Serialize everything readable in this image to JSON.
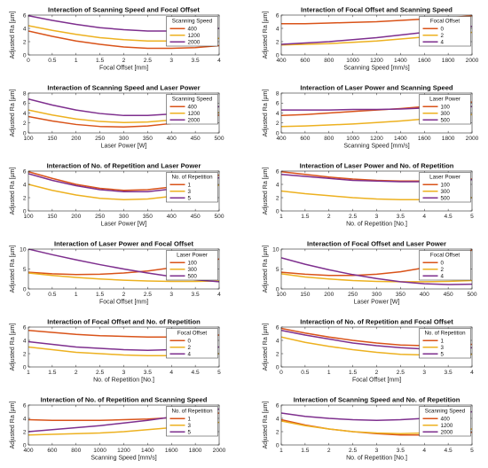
{
  "colors": {
    "series_1": "#D95319",
    "series_2": "#EDB120",
    "series_3": "#7E2F8E"
  },
  "chart_data": [
    {
      "type": "line",
      "title": "Interaction of Scanning Speed and Focal Offset",
      "xlabel": "Focal Offset [mm]",
      "ylabel": "Adjusted Ra [µm]",
      "xlim": [
        0,
        4
      ],
      "ylim": [
        0,
        6
      ],
      "xticks": [
        0,
        0.5,
        1,
        1.5,
        2,
        2.5,
        3,
        3.5,
        4
      ],
      "yticks": [
        0,
        2,
        4,
        6
      ],
      "x": [
        0,
        0.5,
        1,
        1.5,
        2,
        2.5,
        3,
        3.5,
        4
      ],
      "legend_title": "Scanning Speed",
      "legend_loc": "top-right",
      "series": [
        {
          "name": "400",
          "values": [
            3.6,
            2.8,
            2.1,
            1.6,
            1.2,
            1.0,
            1.0,
            1.1,
            1.4
          ]
        },
        {
          "name": "1200",
          "values": [
            4.4,
            3.7,
            3.1,
            2.6,
            2.3,
            2.1,
            2.1,
            2.2,
            2.5
          ]
        },
        {
          "name": "2000",
          "values": [
            5.9,
            5.2,
            4.6,
            4.1,
            3.8,
            3.6,
            3.6,
            3.7,
            4.0
          ]
        }
      ]
    },
    {
      "type": "line",
      "title": "Interaction of Focal Offset and Scanning Speed",
      "xlabel": "Scanning Speed [mm/s]",
      "ylabel": "Adjusted Ra [µm]",
      "xlim": [
        400,
        2000
      ],
      "ylim": [
        0,
        6
      ],
      "xticks": [
        400,
        600,
        800,
        1000,
        1200,
        1400,
        1600,
        1800,
        2000
      ],
      "yticks": [
        0,
        2,
        4,
        6
      ],
      "x": [
        400,
        600,
        800,
        1000,
        1200,
        1400,
        1600,
        1800,
        2000
      ],
      "legend_title": "Focal Offset",
      "legend_loc": "top-right",
      "series": [
        {
          "name": "0",
          "values": [
            4.7,
            4.7,
            4.8,
            4.9,
            5.0,
            5.2,
            5.4,
            5.6,
            5.9
          ]
        },
        {
          "name": "2",
          "values": [
            1.5,
            1.6,
            1.7,
            1.9,
            2.1,
            2.4,
            2.7,
            3.0,
            3.4
          ]
        },
        {
          "name": "4",
          "values": [
            1.6,
            1.8,
            2.0,
            2.3,
            2.6,
            3.0,
            3.4,
            3.8,
            4.3
          ]
        }
      ]
    },
    {
      "type": "line",
      "title": "Interaction of Scanning Speed and Laser Power",
      "xlabel": "Laser Power [W]",
      "ylabel": "Adjusted Ra [µm]",
      "xlim": [
        100,
        500
      ],
      "ylim": [
        0,
        8
      ],
      "xticks": [
        100,
        150,
        200,
        250,
        300,
        350,
        400,
        450,
        500
      ],
      "yticks": [
        0,
        2,
        4,
        6,
        8
      ],
      "x": [
        100,
        150,
        200,
        250,
        300,
        350,
        400,
        450,
        500
      ],
      "legend_title": "Scanning Speed",
      "legend_loc": "top-right",
      "series": [
        {
          "name": "400",
          "values": [
            3.3,
            2.4,
            1.7,
            1.3,
            1.2,
            1.4,
            1.9,
            2.6,
            3.6
          ]
        },
        {
          "name": "1200",
          "values": [
            4.6,
            3.6,
            2.8,
            2.3,
            2.1,
            2.2,
            2.6,
            3.2,
            4.1
          ]
        },
        {
          "name": "2000",
          "values": [
            6.8,
            5.6,
            4.6,
            3.9,
            3.5,
            3.5,
            3.8,
            4.4,
            5.3
          ]
        }
      ]
    },
    {
      "type": "line",
      "title": "Interaction of Laser Power and Scanning Speed",
      "xlabel": "Scanning Speed [mm/s]",
      "ylabel": "Adjusted Ra [µm]",
      "xlim": [
        400,
        2000
      ],
      "ylim": [
        0,
        8
      ],
      "xticks": [
        400,
        600,
        800,
        1000,
        1200,
        1400,
        1600,
        1800,
        2000
      ],
      "yticks": [
        0,
        2,
        4,
        6,
        8
      ],
      "x": [
        400,
        600,
        800,
        1000,
        1200,
        1400,
        1600,
        1800,
        2000
      ],
      "legend_title": "Laser Power",
      "legend_loc": "top-right",
      "series": [
        {
          "name": "100",
          "values": [
            3.5,
            3.7,
            4.0,
            4.3,
            4.6,
            4.9,
            5.3,
            5.7,
            6.2
          ]
        },
        {
          "name": "300",
          "values": [
            1.3,
            1.4,
            1.6,
            1.8,
            2.1,
            2.4,
            2.8,
            3.2,
            3.7
          ]
        },
        {
          "name": "500",
          "values": [
            4.6,
            4.6,
            4.6,
            4.7,
            4.7,
            4.8,
            5.0,
            5.1,
            5.3
          ]
        }
      ]
    },
    {
      "type": "line",
      "title": "Interaction of No. of Repetition and Laser Power",
      "xlabel": "Laser Power [W]",
      "ylabel": "Adjusted Ra [µm]",
      "xlim": [
        100,
        500
      ],
      "ylim": [
        0,
        6
      ],
      "xticks": [
        100,
        150,
        200,
        250,
        300,
        350,
        400,
        450,
        500
      ],
      "yticks": [
        0,
        2,
        4,
        6
      ],
      "x": [
        100,
        150,
        200,
        250,
        300,
        350,
        400,
        450,
        500
      ],
      "legend_title": "No. of Repetition",
      "legend_loc": "top-right",
      "series": [
        {
          "name": "1",
          "values": [
            5.9,
            4.9,
            4.0,
            3.4,
            3.1,
            3.2,
            3.6,
            4.3,
            5.4
          ]
        },
        {
          "name": "3",
          "values": [
            4.0,
            3.1,
            2.4,
            1.9,
            1.7,
            1.8,
            2.2,
            2.9,
            3.9
          ]
        },
        {
          "name": "5",
          "values": [
            5.6,
            4.6,
            3.8,
            3.2,
            2.9,
            2.9,
            3.3,
            4.0,
            5.0
          ]
        }
      ]
    },
    {
      "type": "line",
      "title": "Interaction of Laser Power and No. of Repetition",
      "xlabel": "No. of Repetition [No.]",
      "ylabel": "Adjusted Ra [µm]",
      "xlim": [
        1,
        5
      ],
      "ylim": [
        0,
        6
      ],
      "xticks": [
        1,
        1.5,
        2,
        2.5,
        3,
        3.5,
        4,
        4.5,
        5
      ],
      "yticks": [
        0,
        2,
        4,
        6
      ],
      "x": [
        1,
        1.5,
        2,
        2.5,
        3,
        3.5,
        4,
        4.5,
        5
      ],
      "legend_title": "Laser Power",
      "legend_loc": "top-right",
      "series": [
        {
          "name": "100",
          "values": [
            5.9,
            5.5,
            5.1,
            4.8,
            4.6,
            4.5,
            4.5,
            4.6,
            4.8
          ]
        },
        {
          "name": "300",
          "values": [
            3.0,
            2.6,
            2.3,
            2.0,
            1.8,
            1.7,
            1.7,
            1.8,
            2.0
          ]
        },
        {
          "name": "500",
          "values": [
            5.5,
            5.2,
            4.9,
            4.6,
            4.5,
            4.4,
            4.4,
            4.5,
            4.7
          ]
        }
      ]
    },
    {
      "type": "line",
      "title": "Interaction of Laser Power and Focal Offset",
      "xlabel": "Focal Offset [mm]",
      "ylabel": "Adjusted Ra [µm]",
      "xlim": [
        0,
        4
      ],
      "ylim": [
        0,
        10
      ],
      "xticks": [
        0,
        0.5,
        1,
        1.5,
        2,
        2.5,
        3,
        3.5,
        4
      ],
      "yticks": [
        0,
        5,
        10
      ],
      "x": [
        0,
        0.5,
        1,
        1.5,
        2,
        2.5,
        3,
        3.5,
        4
      ],
      "legend_title": "Laser Power",
      "legend_loc": "top-right",
      "series": [
        {
          "name": "100",
          "values": [
            4.2,
            3.8,
            3.6,
            3.7,
            4.0,
            4.5,
            5.3,
            6.3,
            7.5
          ]
        },
        {
          "name": "300",
          "values": [
            4.0,
            3.4,
            2.9,
            2.5,
            2.2,
            2.0,
            1.9,
            1.9,
            2.0
          ]
        },
        {
          "name": "500",
          "values": [
            10.0,
            8.6,
            7.3,
            6.1,
            5.0,
            4.0,
            3.1,
            2.3,
            1.8
          ]
        }
      ]
    },
    {
      "type": "line",
      "title": "Interaction of Focal Offset and Laser Power",
      "xlabel": "Laser Power [W]",
      "ylabel": "Adjusted Ra [µm]",
      "xlim": [
        100,
        500
      ],
      "ylim": [
        0,
        10
      ],
      "xticks": [
        100,
        150,
        200,
        250,
        300,
        350,
        400,
        450,
        500
      ],
      "yticks": [
        0,
        5,
        10
      ],
      "x": [
        100,
        150,
        200,
        250,
        300,
        350,
        400,
        450,
        500
      ],
      "legend_title": "Focal Offset",
      "legend_loc": "top-right",
      "series": [
        {
          "name": "0",
          "values": [
            4.2,
            3.7,
            3.4,
            3.4,
            3.7,
            4.3,
            5.3,
            6.8,
            9.8
          ]
        },
        {
          "name": "2",
          "values": [
            3.8,
            3.0,
            2.5,
            2.1,
            1.9,
            1.8,
            1.8,
            1.9,
            2.1
          ]
        },
        {
          "name": "4",
          "values": [
            7.8,
            6.2,
            4.8,
            3.6,
            2.6,
            1.8,
            1.3,
            1.1,
            1.2
          ]
        }
      ]
    },
    {
      "type": "line",
      "title": "Interaction of Focal Offset and No. of Repetition",
      "xlabel": "No. of Repetition [No.]",
      "ylabel": "Adjusted Ra [µm]",
      "xlim": [
        1,
        5
      ],
      "ylim": [
        0,
        6
      ],
      "xticks": [
        1,
        1.5,
        2,
        2.5,
        3,
        3.5,
        4,
        4.5,
        5
      ],
      "yticks": [
        0,
        2,
        4,
        6
      ],
      "x": [
        1,
        1.5,
        2,
        2.5,
        3,
        3.5,
        4,
        4.5,
        5
      ],
      "legend_title": "Focal Offset",
      "legend_loc": "top-right",
      "series": [
        {
          "name": "0",
          "values": [
            5.5,
            5.2,
            4.9,
            4.7,
            4.6,
            4.5,
            4.5,
            4.6,
            4.8
          ]
        },
        {
          "name": "2",
          "values": [
            3.0,
            2.6,
            2.2,
            2.0,
            1.8,
            1.7,
            1.7,
            1.8,
            2.0
          ]
        },
        {
          "name": "4",
          "values": [
            3.8,
            3.4,
            3.0,
            2.8,
            2.6,
            2.5,
            2.6,
            2.7,
            3.0
          ]
        }
      ]
    },
    {
      "type": "line",
      "title": "Interaction of No. of Repetition and Focal Offset",
      "xlabel": "Focal Offset [mm]",
      "ylabel": "Adjusted Ra [µm]",
      "xlim": [
        0,
        4
      ],
      "ylim": [
        0,
        6
      ],
      "xticks": [
        0,
        0.5,
        1,
        1.5,
        2,
        2.5,
        3,
        3.5,
        4
      ],
      "yticks": [
        0,
        2,
        4,
        6
      ],
      "x": [
        0,
        0.5,
        1,
        1.5,
        2,
        2.5,
        3,
        3.5,
        4
      ],
      "legend_title": "No. of Repetition",
      "legend_loc": "top-right",
      "series": [
        {
          "name": "1",
          "values": [
            5.8,
            5.1,
            4.5,
            4.0,
            3.6,
            3.3,
            3.2,
            3.2,
            3.4
          ]
        },
        {
          "name": "3",
          "values": [
            4.5,
            3.7,
            3.1,
            2.6,
            2.2,
            1.9,
            1.8,
            1.8,
            1.9
          ]
        },
        {
          "name": "5",
          "values": [
            5.5,
            4.8,
            4.2,
            3.6,
            3.2,
            2.9,
            2.7,
            2.7,
            2.9
          ]
        }
      ]
    },
    {
      "type": "line",
      "title": "Interaction of No. of Repetition and Scanning Speed",
      "xlabel": "Scanning Speed [mm/s]",
      "ylabel": "Adjusted Ra [µm]",
      "xlim": [
        400,
        2000
      ],
      "ylim": [
        0,
        6
      ],
      "xticks": [
        400,
        600,
        800,
        1000,
        1200,
        1400,
        1600,
        1800,
        2000
      ],
      "yticks": [
        0,
        2,
        4,
        6
      ],
      "x": [
        400,
        600,
        800,
        1000,
        1200,
        1400,
        1600,
        1800,
        2000
      ],
      "legend_title": "No. of Repetition",
      "legend_loc": "top-right",
      "series": [
        {
          "name": "1",
          "values": [
            3.8,
            3.7,
            3.7,
            3.7,
            3.8,
            3.9,
            4.1,
            4.4,
            4.8
          ]
        },
        {
          "name": "3",
          "values": [
            1.5,
            1.6,
            1.7,
            1.8,
            2.0,
            2.3,
            2.6,
            3.0,
            3.4
          ]
        },
        {
          "name": "5",
          "values": [
            2.0,
            2.3,
            2.6,
            2.9,
            3.3,
            3.7,
            4.2,
            4.7,
            5.4
          ]
        }
      ]
    },
    {
      "type": "line",
      "title": "Interaction of Scanning Speed and No. of Repetition",
      "xlabel": "No. of Repetition [No.]",
      "ylabel": "Adjusted Ra [µm]",
      "xlim": [
        1,
        5
      ],
      "ylim": [
        0,
        6
      ],
      "xticks": [
        1,
        1.5,
        2,
        2.5,
        3,
        3.5,
        4,
        4.5,
        5
      ],
      "yticks": [
        0,
        2,
        4,
        6
      ],
      "x": [
        1,
        1.5,
        2,
        2.5,
        3,
        3.5,
        4,
        4.5,
        5
      ],
      "legend_title": "Scanning Speed",
      "legend_loc": "top-right",
      "series": [
        {
          "name": "400",
          "values": [
            3.8,
            3.0,
            2.4,
            2.0,
            1.7,
            1.5,
            1.5,
            1.6,
            1.9
          ]
        },
        {
          "name": "1200",
          "values": [
            3.6,
            2.9,
            2.4,
            2.0,
            1.8,
            1.7,
            1.8,
            2.0,
            2.4
          ]
        },
        {
          "name": "2000",
          "values": [
            4.8,
            4.3,
            4.0,
            3.8,
            3.7,
            3.8,
            4.0,
            4.4,
            5.0
          ]
        }
      ]
    }
  ]
}
